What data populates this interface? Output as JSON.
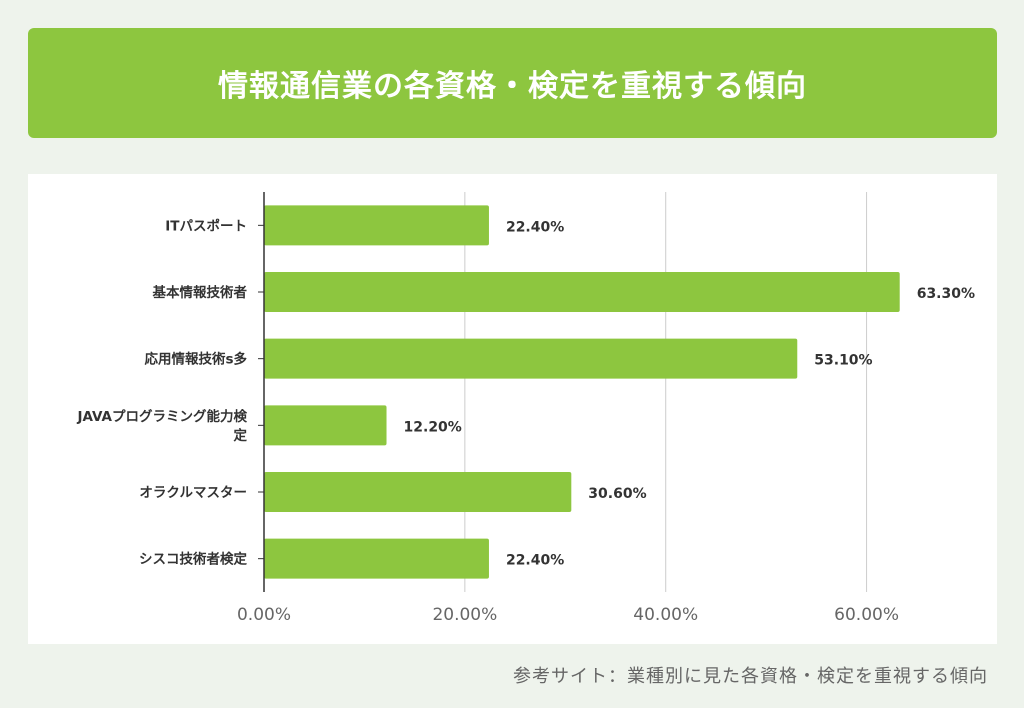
{
  "title": "情報通信業の各資格・検定を重視する傾向",
  "source": "参考サイト：業種別に見た各資格・検定を重視する傾向",
  "colors": {
    "bar": "#8dc63f",
    "title_bg": "#8dc63f",
    "background": "#eef3ec",
    "grid": "#cccccc",
    "axis": "#333333"
  },
  "chart_data": {
    "type": "bar",
    "orientation": "horizontal",
    "categories": [
      [
        "ITパスポート"
      ],
      [
        "基本情報技術者"
      ],
      [
        "応用情報技術s多"
      ],
      [
        "JAVAプログラミング能力検",
        "定"
      ],
      [
        "オラクルマスター"
      ],
      [
        "シスコ技術者検定"
      ]
    ],
    "values": [
      22.4,
      63.3,
      53.1,
      12.2,
      30.6,
      22.4
    ],
    "value_labels": [
      "22.40%",
      "63.30%",
      "53.10%",
      "12.20%",
      "30.60%",
      "22.40%"
    ],
    "xlim": [
      0,
      70
    ],
    "x_ticks": [
      0,
      20,
      40,
      60
    ],
    "x_tick_labels": [
      "0.00%",
      "20.00%",
      "40.00%",
      "60.00%"
    ],
    "grid": true,
    "legend": "none"
  }
}
